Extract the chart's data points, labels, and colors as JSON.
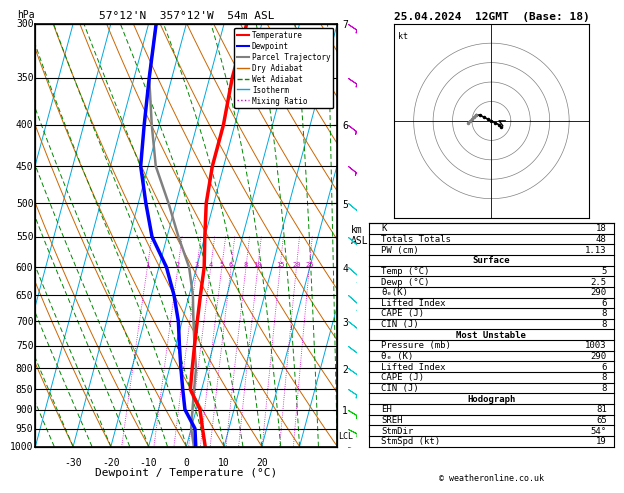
{
  "title_left": "57°12'N  357°12'W  54m ASL",
  "title_right": "25.04.2024  12GMT  (Base: 18)",
  "xlabel": "Dewpoint / Temperature (°C)",
  "pressure_levels": [
    300,
    350,
    400,
    450,
    500,
    550,
    600,
    650,
    700,
    750,
    800,
    850,
    900,
    950,
    1000
  ],
  "temp_C": [
    -14,
    -14,
    -13,
    -13,
    -12,
    -10,
    -8,
    -7,
    -6,
    -5,
    -4,
    -3,
    1,
    3,
    5
  ],
  "dewp_C": [
    -38,
    -36,
    -34,
    -32,
    -28,
    -24,
    -18,
    -14,
    -11,
    -9,
    -7,
    -5,
    -3,
    1,
    2.5
  ],
  "parcel_C": [
    -38,
    -36,
    -32,
    -28,
    -22,
    -17,
    -12,
    -9,
    -7,
    -5,
    -3,
    -2,
    -1,
    0,
    2
  ],
  "temp_color": "#ff0000",
  "dewp_color": "#0000ff",
  "parcel_color": "#808080",
  "dry_adiabat_color": "#cc6600",
  "wet_adiabat_color": "#008800",
  "isotherm_color": "#00aadd",
  "mixing_ratio_color": "#cc00cc",
  "background_color": "#ffffff",
  "xlim": [
    -40,
    40
  ],
  "skew": 30,
  "km_ticks": [
    1,
    2,
    3,
    4,
    5,
    6,
    7
  ],
  "km_pressures": [
    900,
    800,
    700,
    600,
    500,
    400,
    300
  ],
  "lcl_pressure": 970,
  "wind_barb_pressures": [
    1000,
    950,
    900,
    850,
    800,
    750,
    700,
    650,
    600,
    550,
    500,
    450,
    400,
    350,
    300
  ],
  "wind_u": [
    -3,
    -4,
    -5,
    -6,
    -7,
    -8,
    -9,
    -9,
    -8,
    -7,
    -6,
    -5,
    -4,
    -3,
    -3
  ],
  "wind_v": [
    1,
    2,
    3,
    4,
    5,
    6,
    7,
    8,
    7,
    6,
    5,
    4,
    3,
    2,
    2
  ],
  "wind_colors": [
    "#00cc00",
    "#00cc00",
    "#00cc00",
    "#00cccc",
    "#00cccc",
    "#00cccc",
    "#00cccc",
    "#00cccc",
    "#00cccc",
    "#00cccc",
    "#00cccc",
    "#cc00cc",
    "#cc00cc",
    "#cc00cc",
    "#cc00cc"
  ],
  "table_K": "18",
  "table_TT": "48",
  "table_PW": "1.13",
  "table_surf_temp": "5",
  "table_surf_dewp": "2.5",
  "table_surf_theta": "290",
  "table_surf_li": "6",
  "table_surf_cape": "8",
  "table_surf_cin": "8",
  "table_mu_pres": "1003",
  "table_mu_theta": "290",
  "table_mu_li": "6",
  "table_mu_cape": "8",
  "table_mu_cin": "8",
  "table_EH": "81",
  "table_SREH": "65",
  "table_StmDir": "54°",
  "table_StmSpd": "19",
  "footer": "© weatheronline.co.uk"
}
